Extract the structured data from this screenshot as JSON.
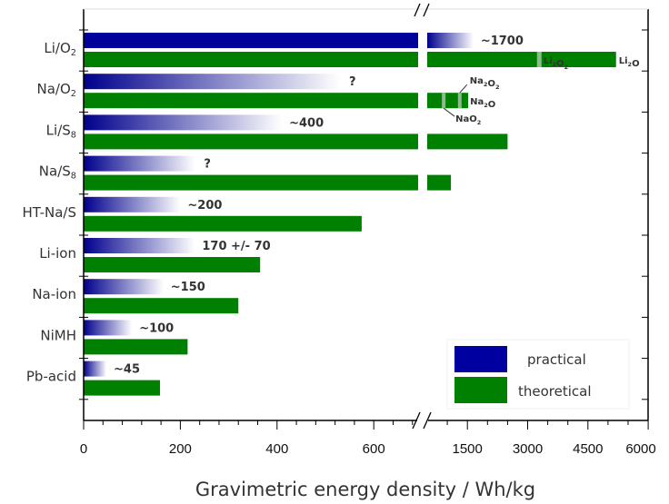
{
  "chart_data": {
    "type": "bar",
    "orientation": "horizontal",
    "xlabel": "Gravimetric energy density / Wh/kg",
    "x_axis_break": true,
    "x_ticks_left": [
      0,
      200,
      400,
      600
    ],
    "x_ticks_right": [
      1500,
      3000,
      4500,
      6000
    ],
    "xlim_left": [
      0,
      692
    ],
    "xlim_right": [
      500,
      6000
    ],
    "legend": {
      "position": "bottom-right",
      "entries": [
        {
          "name": "practical",
          "color": "#0000a0"
        },
        {
          "name": "theoretical",
          "color": "#008000"
        }
      ]
    },
    "categories": [
      {
        "label": "Li/O",
        "sub": "2"
      },
      {
        "label": "Na/O",
        "sub": "2"
      },
      {
        "label": "Li/S",
        "sub": "8"
      },
      {
        "label": "Na/S",
        "sub": "8"
      },
      {
        "label": "HT-Na/S",
        "sub": ""
      },
      {
        "label": "Li-ion",
        "sub": ""
      },
      {
        "label": "Na-ion",
        "sub": ""
      },
      {
        "label": "NiMH",
        "sub": ""
      },
      {
        "label": "Pb-acid",
        "sub": ""
      }
    ],
    "series": [
      {
        "name": "practical",
        "values": [
          1650,
          530,
          410,
          230,
          200,
          230,
          165,
          100,
          47
        ],
        "labels": [
          "~1700",
          "?",
          "~400",
          "?",
          "~200",
          "170 +/- 70",
          "~150",
          "~100",
          "~45"
        ]
      },
      {
        "name": "theoretical",
        "values": [
          5200,
          1520,
          2500,
          1090,
          575,
          365,
          320,
          215,
          158
        ]
      }
    ],
    "annotations": [
      {
        "text": "Li",
        "sub": "2",
        "text2": "O",
        "sub2": "2",
        "value": 3300,
        "row": 0
      },
      {
        "text": "Li",
        "sub": "2",
        "text2": "O",
        "sub2": "",
        "value": 5200,
        "row": 0
      },
      {
        "text": "Na",
        "sub": "2",
        "text2": "O",
        "sub2": "2",
        "value": 1310,
        "row": 1
      },
      {
        "text": "Na",
        "sub": "2",
        "text2": "O",
        "sub2": "",
        "value": 1520,
        "row": 1
      },
      {
        "text": "NaO",
        "sub": "2",
        "text2": "",
        "sub2": "",
        "value": 910,
        "row": 1
      }
    ]
  }
}
